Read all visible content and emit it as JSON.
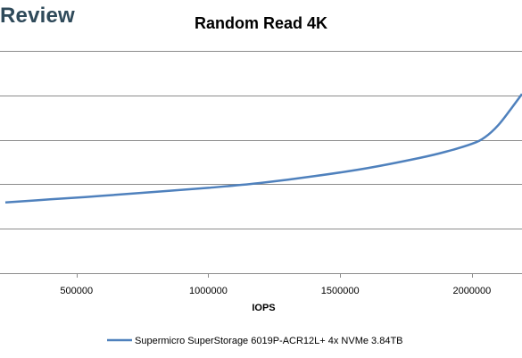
{
  "brand": {
    "text": "Review"
  },
  "chart_data": {
    "type": "line",
    "title": "Random Read 4K",
    "xlabel": "IOPS",
    "ylabel": "",
    "xlim": [
      230000,
      2190000
    ],
    "ylim": [
      0,
      5
    ],
    "x_ticks": [
      500000,
      1000000,
      1500000,
      2000000
    ],
    "x_tick_labels": [
      "500000",
      "1000000",
      "1500000",
      "2000000"
    ],
    "y_gridlines": [
      0,
      1,
      2,
      3,
      4,
      5
    ],
    "grid": true,
    "legend_position": "bottom",
    "series": [
      {
        "name": "Supermicro SuperStorage 6019P-ACR12L+ 4x NVMe 3.84TB",
        "color": "#4f81bd",
        "x": [
          230000,
          400000,
          600000,
          800000,
          1000000,
          1200000,
          1400000,
          1600000,
          1800000,
          1900000,
          2000000,
          2050000,
          2100000,
          2150000,
          2190000
        ],
        "y": [
          1.59,
          1.66,
          1.74,
          1.83,
          1.92,
          2.03,
          2.18,
          2.36,
          2.59,
          2.73,
          2.91,
          3.06,
          3.33,
          3.71,
          4.03
        ]
      }
    ]
  }
}
